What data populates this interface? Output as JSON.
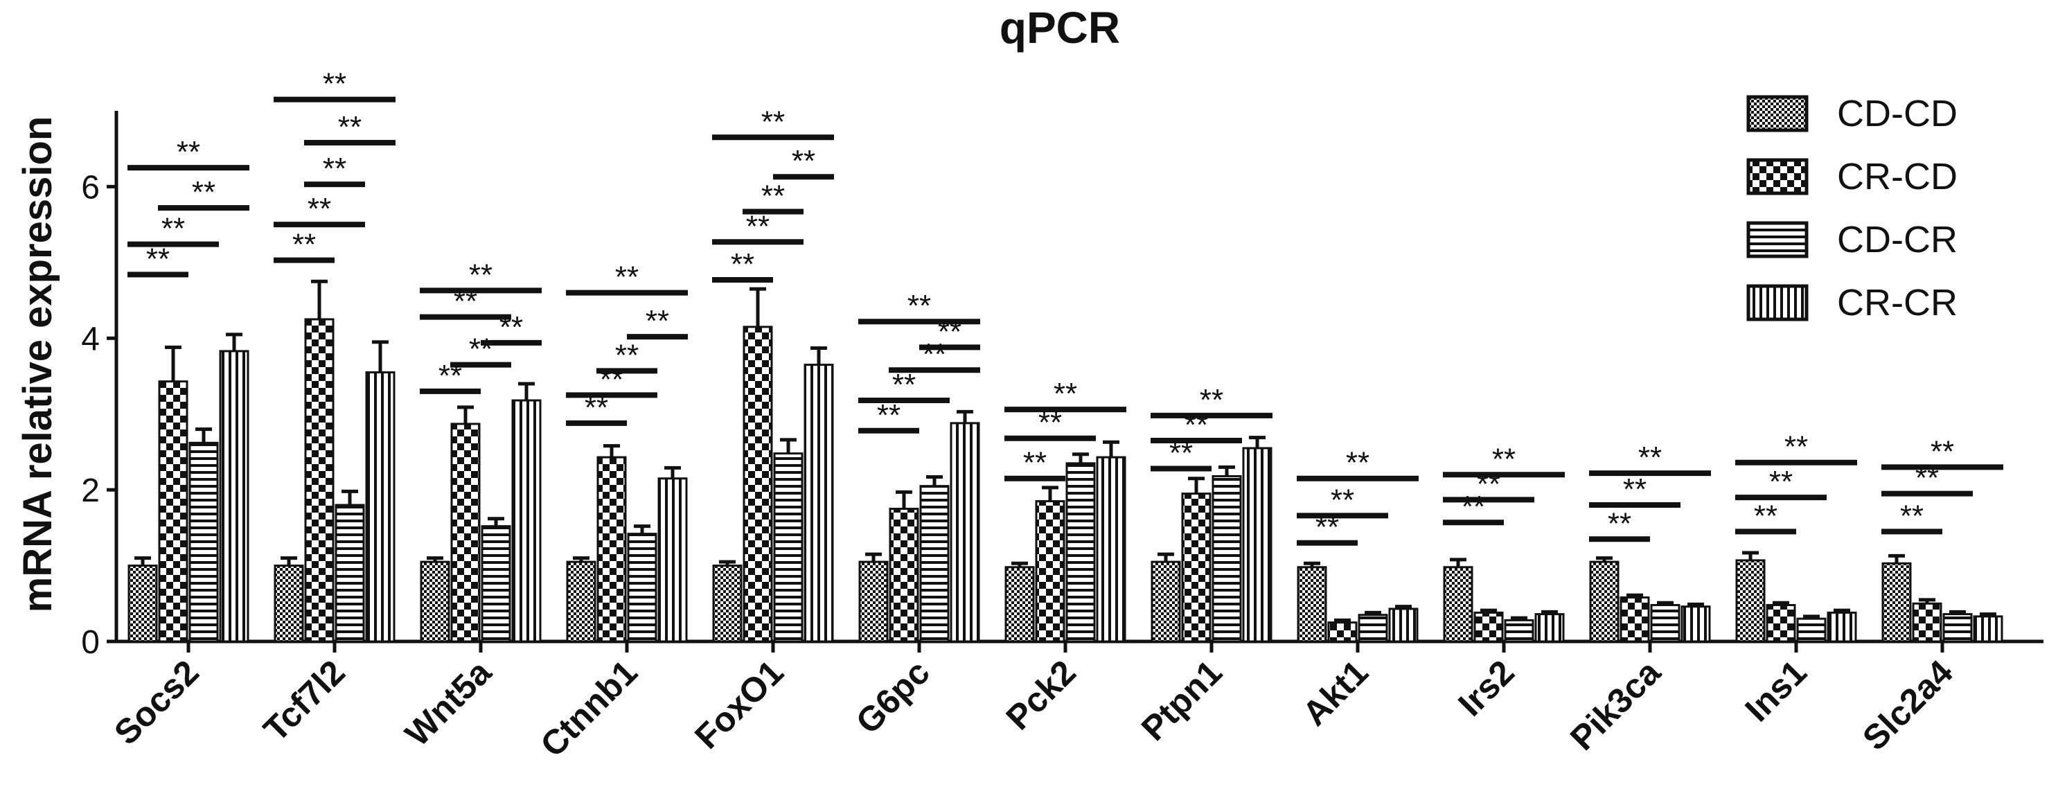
{
  "chart_data": {
    "type": "bar",
    "title": "qPCR",
    "xlabel": "",
    "ylabel": "mRNA relative expression",
    "ylim": [
      0,
      7
    ],
    "yticks": [
      "0",
      "2",
      "4",
      "6"
    ],
    "legend_position": "top-right",
    "categories": [
      "Socs2",
      "Tcf7l2",
      "Wnt5a",
      "Ctnnb1",
      "FoxO1",
      "G6pc",
      "Pck2",
      "Ptpn1",
      "Akt1",
      "Irs2",
      "Pik3ca",
      "Ins1",
      "Slc2a4"
    ],
    "series": [
      {
        "name": "CD-CD",
        "pattern": "checker-fine",
        "values": [
          1.0,
          1.0,
          1.05,
          1.05,
          1.0,
          1.05,
          0.98,
          1.05,
          0.98,
          0.98,
          1.05,
          1.07,
          1.03
        ],
        "errors": [
          0.1,
          0.1,
          0.05,
          0.05,
          0.05,
          0.1,
          0.05,
          0.1,
          0.05,
          0.1,
          0.05,
          0.1,
          0.1
        ]
      },
      {
        "name": "CR-CD",
        "pattern": "checker-coarse",
        "values": [
          3.43,
          4.25,
          2.87,
          2.43,
          4.15,
          1.75,
          1.85,
          1.95,
          0.25,
          0.38,
          0.58,
          0.48,
          0.5
        ],
        "errors": [
          0.45,
          0.5,
          0.22,
          0.15,
          0.5,
          0.22,
          0.18,
          0.2,
          0.03,
          0.03,
          0.03,
          0.03,
          0.05
        ]
      },
      {
        "name": "CD-CR",
        "pattern": "horizontal",
        "values": [
          2.62,
          1.8,
          1.52,
          1.42,
          2.48,
          2.05,
          2.35,
          2.18,
          0.35,
          0.28,
          0.48,
          0.3,
          0.36
        ],
        "errors": [
          0.18,
          0.18,
          0.1,
          0.1,
          0.18,
          0.12,
          0.12,
          0.12,
          0.03,
          0.03,
          0.03,
          0.03,
          0.03
        ]
      },
      {
        "name": "CR-CR",
        "pattern": "vertical",
        "values": [
          3.83,
          3.55,
          3.18,
          2.15,
          3.65,
          2.88,
          2.43,
          2.55,
          0.43,
          0.36,
          0.46,
          0.38,
          0.33
        ],
        "errors": [
          0.22,
          0.4,
          0.22,
          0.14,
          0.22,
          0.15,
          0.2,
          0.14,
          0.03,
          0.03,
          0.03,
          0.03,
          0.03
        ]
      }
    ],
    "significance_label": "**",
    "significance": [
      [
        [
          0,
          1,
          4.84
        ],
        [
          0,
          2,
          5.24
        ],
        [
          0,
          3,
          6.25
        ],
        [
          1,
          3,
          5.72
        ]
      ],
      [
        [
          0,
          1,
          5.03
        ],
        [
          0,
          2,
          5.5
        ],
        [
          0,
          3,
          7.15
        ],
        [
          1,
          2,
          6.03
        ],
        [
          1,
          3,
          6.58
        ]
      ],
      [
        [
          0,
          1,
          3.3
        ],
        [
          0,
          2,
          4.28
        ],
        [
          0,
          3,
          4.63
        ],
        [
          1,
          2,
          3.65
        ],
        [
          2,
          3,
          3.94
        ]
      ],
      [
        [
          0,
          1,
          2.88
        ],
        [
          0,
          2,
          3.25
        ],
        [
          0,
          3,
          4.6
        ],
        [
          1,
          2,
          3.57
        ],
        [
          2,
          3,
          4.02
        ]
      ],
      [
        [
          0,
          1,
          4.77
        ],
        [
          0,
          2,
          5.27
        ],
        [
          0,
          3,
          6.65
        ],
        [
          1,
          2,
          5.67
        ],
        [
          2,
          3,
          6.13
        ]
      ],
      [
        [
          0,
          1,
          2.78
        ],
        [
          0,
          2,
          3.18
        ],
        [
          0,
          3,
          4.22
        ],
        [
          1,
          3,
          3.58
        ],
        [
          2,
          3,
          3.88
        ]
      ],
      [
        [
          0,
          1,
          2.15
        ],
        [
          0,
          2,
          2.68
        ],
        [
          0,
          3,
          3.06
        ]
      ],
      [
        [
          0,
          1,
          2.28
        ],
        [
          0,
          2,
          2.65
        ],
        [
          0,
          3,
          2.98
        ]
      ],
      [
        [
          0,
          1,
          1.3
        ],
        [
          0,
          2,
          1.66
        ],
        [
          0,
          3,
          2.15
        ]
      ],
      [
        [
          0,
          1,
          1.57
        ],
        [
          0,
          2,
          1.87
        ],
        [
          0,
          3,
          2.2
        ]
      ],
      [
        [
          0,
          1,
          1.35
        ],
        [
          0,
          2,
          1.8
        ],
        [
          0,
          3,
          2.22
        ]
      ],
      [
        [
          0,
          1,
          1.45
        ],
        [
          0,
          2,
          1.9
        ],
        [
          0,
          3,
          2.36
        ]
      ],
      [
        [
          0,
          1,
          1.45
        ],
        [
          0,
          2,
          1.95
        ],
        [
          0,
          3,
          2.3
        ]
      ]
    ]
  }
}
